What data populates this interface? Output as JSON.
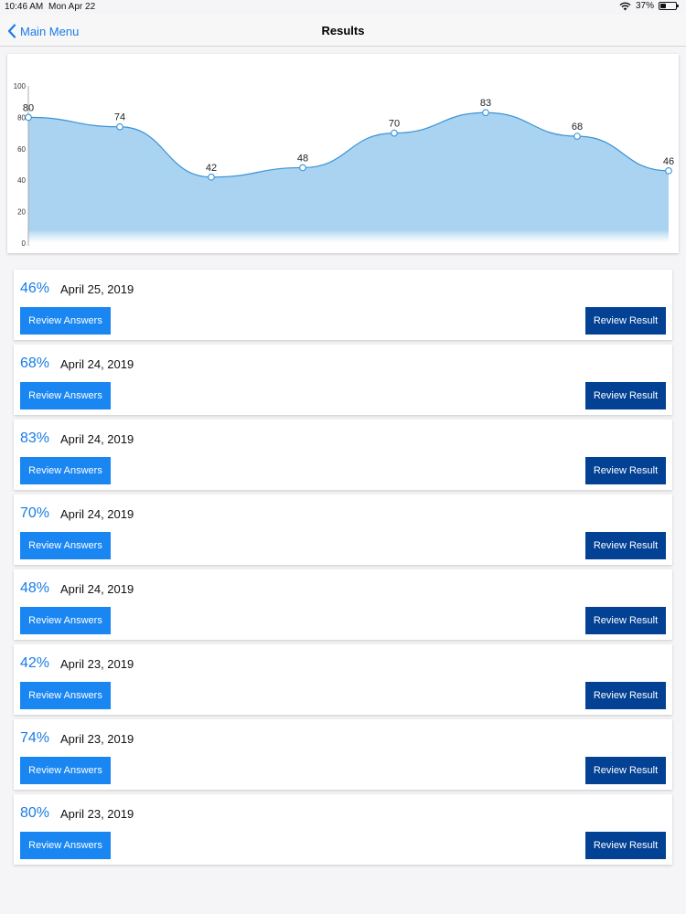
{
  "status_bar": {
    "time": "10:46 AM",
    "date": "Mon Apr 22",
    "battery": "37%",
    "battery_level": 0.37,
    "icons": [
      "wifi-icon",
      "battery-icon"
    ]
  },
  "nav": {
    "back_label": "Main Menu",
    "back_icon": "chevron-left-icon",
    "title": "Results"
  },
  "colors": {
    "accent": "#1a7ce6",
    "review_answers_bg": "#1a86f2",
    "review_result_bg": "#034194",
    "chart_fill": "#a9d3f0",
    "chart_line": "#3a93d6"
  },
  "chart_data": {
    "type": "area",
    "x": [
      1,
      2,
      3,
      4,
      5,
      6,
      7,
      8
    ],
    "series": [
      {
        "values": [
          80,
          74,
          42,
          48,
          70,
          83,
          68,
          46
        ]
      }
    ],
    "data_labels": [
      "80",
      "74",
      "42",
      "48",
      "70",
      "83",
      "68",
      "46"
    ],
    "y_ticks": [
      "0",
      "20",
      "40",
      "60",
      "80",
      "100"
    ],
    "ylim": [
      0,
      100
    ],
    "grid": false,
    "title": "",
    "xlabel": "",
    "ylabel": ""
  },
  "results": [
    {
      "score": "46%",
      "date": "April 25, 2019",
      "answers_label": "Review Answers",
      "result_label": "Review Result"
    },
    {
      "score": "68%",
      "date": "April 24, 2019",
      "answers_label": "Review Answers",
      "result_label": "Review Result"
    },
    {
      "score": "83%",
      "date": "April 24, 2019",
      "answers_label": "Review Answers",
      "result_label": "Review Result"
    },
    {
      "score": "70%",
      "date": "April 24, 2019",
      "answers_label": "Review Answers",
      "result_label": "Review Result"
    },
    {
      "score": "48%",
      "date": "April 24, 2019",
      "answers_label": "Review Answers",
      "result_label": "Review Result"
    },
    {
      "score": "42%",
      "date": "April 23, 2019",
      "answers_label": "Review Answers",
      "result_label": "Review Result"
    },
    {
      "score": "74%",
      "date": "April 23, 2019",
      "answers_label": "Review Answers",
      "result_label": "Review Result"
    },
    {
      "score": "80%",
      "date": "April 23, 2019",
      "answers_label": "Review Answers",
      "result_label": "Review Result"
    }
  ]
}
